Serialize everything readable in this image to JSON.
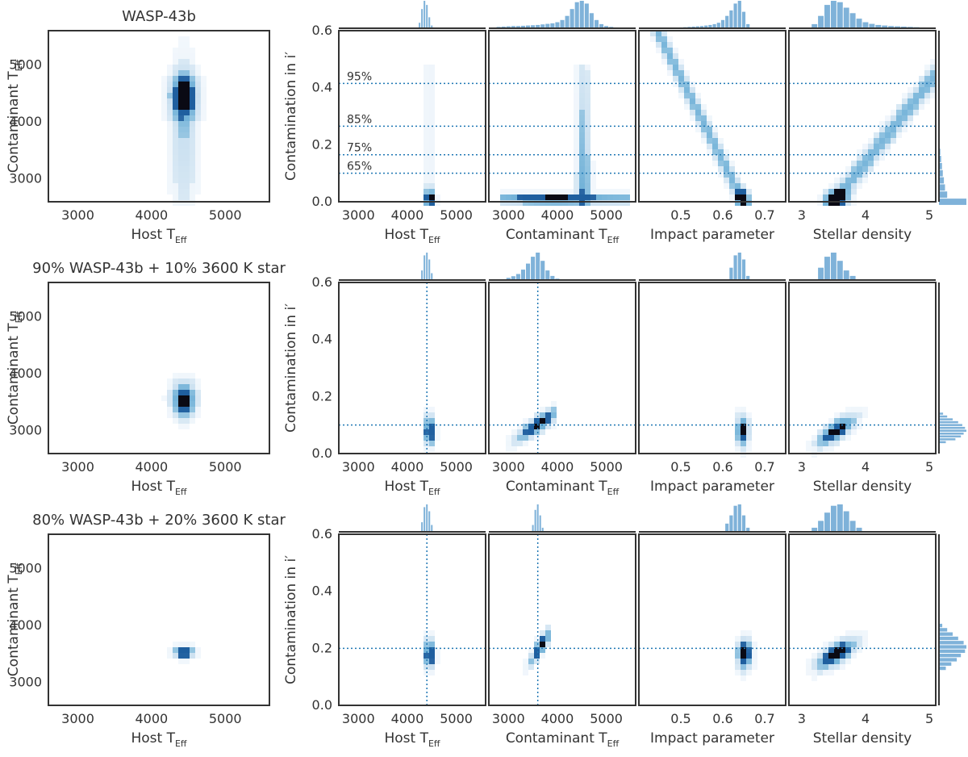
{
  "colors": {
    "hex_light": "#deebf7",
    "hex_mid": "#6baed6",
    "hex_dark": "#1f5f9f",
    "hex_black": "#0a0a14",
    "hist": "#7fb2d9",
    "ref_line": "#1f77b4"
  },
  "labels": {
    "host_teff": "Host T",
    "contaminant_teff": "Contaminant T",
    "eff_sub": "Eff",
    "contamination": "Contamination in i′",
    "impact": "Impact parameter",
    "density": "Stellar density"
  },
  "chart_data": [
    {
      "type": "heatmap",
      "title": "WASP-43b",
      "injected_contamination": null,
      "injected_teff": null,
      "percent_lines": [
        {
          "label": "95%",
          "value": 0.415
        },
        {
          "label": "85%",
          "value": 0.265
        },
        {
          "label": "75%",
          "value": 0.165
        },
        {
          "label": "65%",
          "value": 0.1
        }
      ],
      "axes": {
        "teff": {
          "range": [
            2600,
            5600
          ],
          "ticks": [
            3000,
            4000,
            5000
          ]
        },
        "contam": {
          "range": [
            0,
            0.6
          ],
          "ticks": [
            "0.0",
            "0.2",
            "0.4",
            "0.6"
          ]
        },
        "impact": {
          "range": [
            0.4,
            0.75
          ],
          "ticks": [
            "0.5",
            "0.6",
            "0.7"
          ]
        },
        "density": {
          "range": [
            2.8,
            5.1
          ],
          "ticks": [
            "3",
            "4",
            "5"
          ]
        }
      },
      "hist_host": {
        "bins": [
          4250,
          4300,
          4350,
          4400,
          4450,
          4500
        ],
        "counts": [
          0.2,
          0.7,
          1.0,
          0.85,
          0.4,
          0.1
        ]
      },
      "hist_contam": {
        "bins": [
          2800,
          2900,
          3000,
          3100,
          3200,
          3300,
          3400,
          3500,
          3600,
          3700,
          3800,
          3900,
          4000,
          4100,
          4200,
          4300,
          4400,
          4500,
          4600,
          4700,
          4800,
          4900,
          5000,
          5100,
          5200,
          5300,
          5400
        ],
        "counts": [
          0.05,
          0.06,
          0.07,
          0.08,
          0.08,
          0.09,
          0.1,
          0.11,
          0.12,
          0.14,
          0.16,
          0.18,
          0.22,
          0.3,
          0.45,
          0.7,
          0.95,
          1.0,
          0.9,
          0.55,
          0.3,
          0.15,
          0.08,
          0.05,
          0.03,
          0.02,
          0.01
        ]
      },
      "hist_impact": {
        "bins": [
          0.5,
          0.51,
          0.52,
          0.53,
          0.54,
          0.55,
          0.56,
          0.57,
          0.58,
          0.59,
          0.6,
          0.61,
          0.62,
          0.63,
          0.64,
          0.65,
          0.66
        ],
        "counts": [
          0.03,
          0.04,
          0.05,
          0.06,
          0.07,
          0.08,
          0.1,
          0.12,
          0.15,
          0.2,
          0.3,
          0.45,
          0.65,
          0.9,
          1.0,
          0.6,
          0.15
        ]
      },
      "hist_density": {
        "bins": [
          3.2,
          3.3,
          3.4,
          3.5,
          3.6,
          3.7,
          3.8,
          3.9,
          4.0,
          4.1,
          4.2,
          4.3,
          4.4,
          4.5,
          4.6,
          4.7,
          4.8,
          4.9,
          5.0
        ],
        "counts": [
          0.15,
          0.45,
          0.85,
          1.0,
          0.95,
          0.75,
          0.55,
          0.35,
          0.22,
          0.16,
          0.12,
          0.1,
          0.08,
          0.07,
          0.06,
          0.05,
          0.04,
          0.03,
          0.02
        ]
      },
      "hist_cont": {
        "bins": [
          0.0,
          0.025,
          0.05,
          0.075,
          0.1,
          0.125,
          0.15,
          0.175,
          0.2
        ],
        "counts": [
          1.0,
          0.3,
          0.22,
          0.18,
          0.14,
          0.11,
          0.08,
          0.05,
          0.03
        ]
      }
    },
    {
      "type": "heatmap",
      "title": "90% WASP-43b + 10% 3600 K star",
      "injected_contamination": 0.1,
      "injected_teff": 3600,
      "percent_lines": [],
      "axes": {
        "teff": {
          "range": [
            2600,
            5600
          ],
          "ticks": [
            3000,
            4000,
            5000
          ]
        },
        "contam": {
          "range": [
            0,
            0.6
          ],
          "ticks": [
            "0.0",
            "0.2",
            "0.4",
            "0.6"
          ]
        },
        "impact": {
          "range": [
            0.4,
            0.75
          ],
          "ticks": [
            "0.5",
            "0.6",
            "0.7"
          ]
        },
        "density": {
          "range": [
            2.8,
            5.1
          ],
          "ticks": [
            "3",
            "4",
            "5"
          ]
        }
      },
      "hist_host": {
        "bins": [
          4300,
          4350,
          4400,
          4450,
          4500
        ],
        "counts": [
          0.35,
          0.9,
          1.0,
          0.75,
          0.25
        ]
      },
      "hist_contam": {
        "bins": [
          3000,
          3100,
          3200,
          3300,
          3400,
          3500,
          3600,
          3700,
          3800,
          3900,
          4000
        ],
        "counts": [
          0.08,
          0.14,
          0.22,
          0.38,
          0.6,
          0.85,
          1.0,
          0.7,
          0.35,
          0.15,
          0.05
        ]
      },
      "hist_impact": {
        "bins": [
          0.62,
          0.63,
          0.64,
          0.65,
          0.66
        ],
        "counts": [
          0.45,
          0.9,
          1.0,
          0.75,
          0.15
        ]
      },
      "hist_density": {
        "bins": [
          3.3,
          3.4,
          3.5,
          3.6,
          3.7,
          3.8
        ],
        "counts": [
          0.45,
          0.85,
          1.0,
          0.7,
          0.35,
          0.15
        ]
      },
      "hist_cont": {
        "bins": [
          0.04,
          0.05,
          0.06,
          0.07,
          0.08,
          0.09,
          0.1,
          0.11,
          0.12,
          0.13,
          0.14
        ],
        "counts": [
          0.25,
          0.6,
          0.8,
          0.9,
          1.0,
          0.95,
          0.85,
          0.7,
          0.5,
          0.3,
          0.15
        ]
      }
    },
    {
      "type": "heatmap",
      "title": "80% WASP-43b + 20% 3600 K star",
      "injected_contamination": 0.2,
      "injected_teff": 3600,
      "percent_lines": [],
      "axes": {
        "teff": {
          "range": [
            2600,
            5600
          ],
          "ticks": [
            3000,
            4000,
            5000
          ]
        },
        "contam": {
          "range": [
            0,
            0.6
          ],
          "ticks": [
            "0.0",
            "0.2",
            "0.4",
            "0.6"
          ]
        },
        "impact": {
          "range": [
            0.4,
            0.75
          ],
          "ticks": [
            "0.5",
            "0.6",
            "0.7"
          ]
        },
        "density": {
          "range": [
            2.8,
            5.1
          ],
          "ticks": [
            "3",
            "4",
            "5"
          ]
        }
      },
      "hist_host": {
        "bins": [
          4300,
          4350,
          4400,
          4450,
          4500
        ],
        "counts": [
          0.35,
          0.9,
          1.0,
          0.75,
          0.25
        ]
      },
      "hist_contam": {
        "bins": [
          3500,
          3550,
          3600,
          3650,
          3700
        ],
        "counts": [
          0.25,
          0.8,
          1.0,
          0.6,
          0.15
        ]
      },
      "hist_impact": {
        "bins": [
          0.61,
          0.62,
          0.63,
          0.64,
          0.65,
          0.66
        ],
        "counts": [
          0.3,
          0.6,
          0.95,
          1.0,
          0.6,
          0.15
        ]
      },
      "hist_density": {
        "bins": [
          3.2,
          3.3,
          3.4,
          3.5,
          3.6,
          3.7,
          3.8,
          3.9
        ],
        "counts": [
          0.15,
          0.4,
          0.7,
          0.95,
          1.0,
          0.75,
          0.4,
          0.15
        ]
      },
      "hist_cont": {
        "bins": [
          0.13,
          0.145,
          0.16,
          0.175,
          0.19,
          0.205,
          0.22,
          0.235,
          0.25,
          0.265,
          0.28
        ],
        "counts": [
          0.25,
          0.45,
          0.65,
          0.8,
          0.95,
          1.0,
          0.9,
          0.7,
          0.5,
          0.3,
          0.12
        ]
      }
    }
  ]
}
